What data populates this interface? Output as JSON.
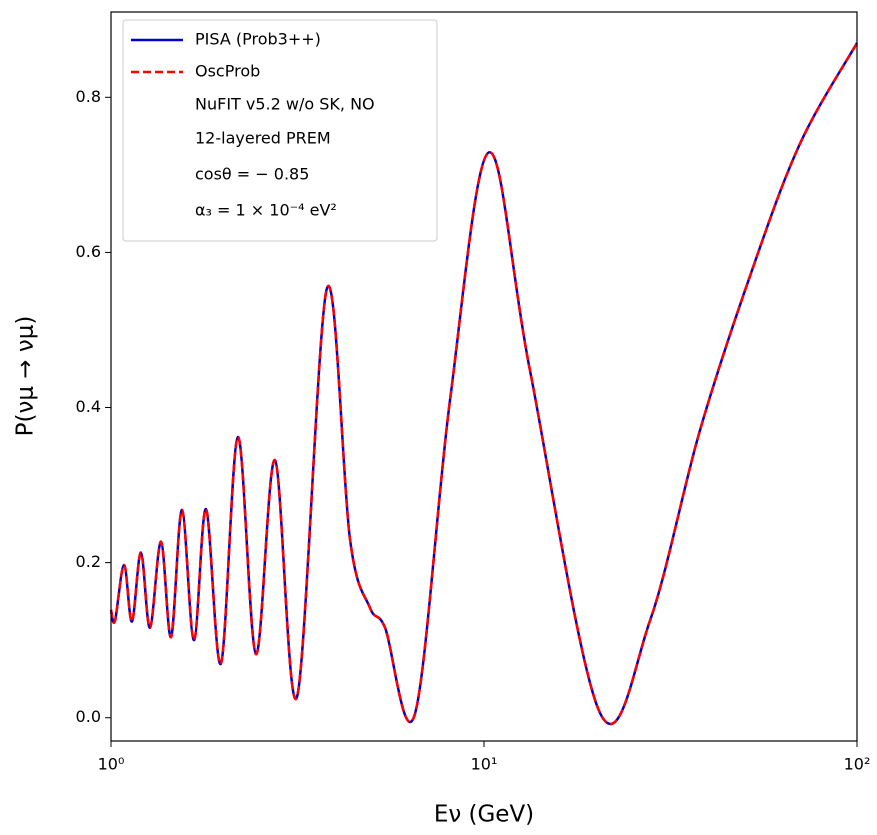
{
  "chart_data": {
    "type": "line",
    "xlabel": "Eν (GeV)",
    "ylabel": "P(νμ → νμ)",
    "xscale": "log",
    "x": [
      1.0,
      1.025,
      1.084,
      1.138,
      1.203,
      1.272,
      1.362,
      1.449,
      1.55,
      1.669,
      1.798,
      1.972,
      2.19,
      2.447,
      2.753,
      3.153,
      3.794,
      4.373,
      4.944,
      5.43,
      6.53,
      8.11,
      10.31,
      13.28,
      20.47,
      27.9,
      37.9,
      51.7,
      70.3,
      100.0
    ],
    "series": [
      {
        "name": "PISA (Prob3++)",
        "color": "#0000cc",
        "style": "solid",
        "values": [
          0.139,
          0.125,
          0.197,
          0.124,
          0.213,
          0.116,
          0.227,
          0.104,
          0.268,
          0.1,
          0.269,
          0.07,
          0.362,
          0.082,
          0.332,
          0.027,
          0.554,
          0.23,
          0.142,
          0.116,
          0.005,
          0.41,
          0.729,
          0.448,
          0.006,
          0.126,
          0.37,
          0.57,
          0.74,
          0.87
        ]
      },
      {
        "name": "OscProb",
        "color": "#ff0000",
        "style": "dashed",
        "values": [
          0.139,
          0.125,
          0.197,
          0.124,
          0.213,
          0.116,
          0.227,
          0.104,
          0.268,
          0.1,
          0.269,
          0.07,
          0.362,
          0.082,
          0.332,
          0.027,
          0.554,
          0.23,
          0.142,
          0.116,
          0.005,
          0.41,
          0.729,
          0.448,
          0.006,
          0.126,
          0.37,
          0.57,
          0.74,
          0.87
        ]
      }
    ],
    "annotations": [
      "NuFIT v5.2 w/o SK, NO",
      "12-layered PREM",
      "cosθ = − 0.85",
      "α₃ = 1 × 10⁻⁴ eV²"
    ],
    "xlim": [
      1,
      100
    ],
    "xticks": [
      {
        "value": 1,
        "label": "10⁰"
      },
      {
        "value": 10,
        "label": "10¹"
      },
      {
        "value": 100,
        "label": "10²"
      }
    ],
    "ylim": [
      -0.03,
      0.91
    ],
    "yticks": [
      {
        "value": 0,
        "label": "0.0"
      },
      0.2,
      0.4,
      0.6,
      0.8
    ],
    "legend": "upper left"
  }
}
